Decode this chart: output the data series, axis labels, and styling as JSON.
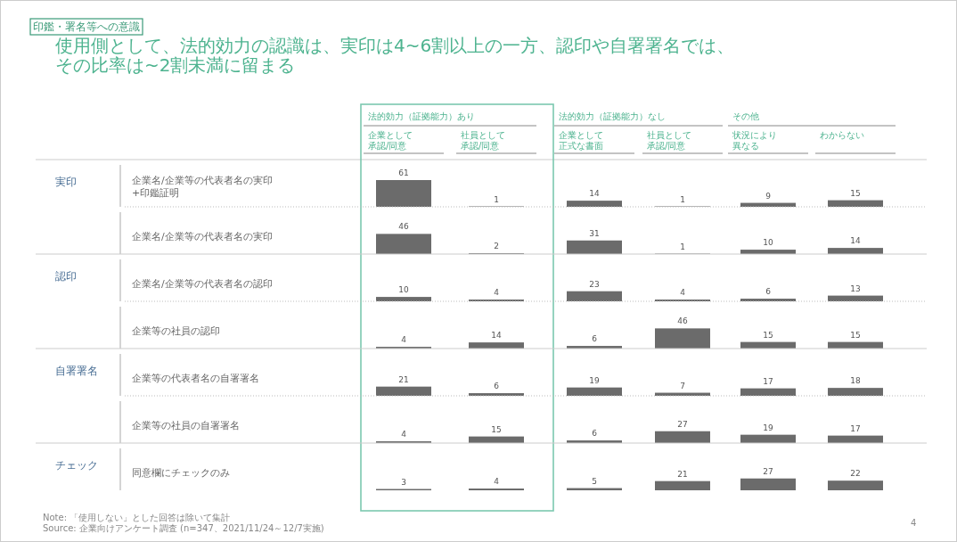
{
  "chart_data": [
    {
      "type": "other",
      "subtitle": "印鑑・署名等への意識",
      "title": "使用側として、法的効力の認識は、実印は4~6割以上の一方、認印や自署署名では、その比率は~2割未満に留まる"
    },
    {
      "type": "bar",
      "ylabel": "企業名/企業等の代表者名の実印+印鑑証明",
      "annotations": [
        "法的効力（証拠能力）あり",
        "法的効力（証拠能力）なし",
        "その他",
        "実印"
      ],
      "categories": [
        "企業として承認/同意",
        "社員として承認/同意",
        "企業として正式な書面",
        "社員として承認/同意",
        "状況により異なる",
        "わからない"
      ],
      "values": [
        61,
        1,
        14,
        1,
        9,
        15
      ],
      "color": "#6b6b6b",
      "data_labels": true
    },
    {
      "type": "bar",
      "ylabel": "企業名/企業等の代表者名の実印",
      "categories": [
        null,
        null,
        null,
        null,
        null,
        null
      ],
      "values": [
        46,
        2,
        31,
        1,
        10,
        14
      ],
      "color": "#6b6b6b",
      "data_labels": true
    },
    {
      "type": "bar",
      "ylabel": "企業名/企業等の代表者名の認印",
      "annotations": [
        "認印"
      ],
      "categories": [
        null,
        null,
        null,
        null,
        null,
        null
      ],
      "values": [
        10,
        4,
        23,
        4,
        6,
        13
      ],
      "color": "#6b6b6b",
      "data_labels": true
    },
    {
      "type": "bar",
      "ylabel": "企業等の社員の認印",
      "categories": [
        null,
        null,
        null,
        null,
        null,
        null
      ],
      "values": [
        4,
        14,
        6,
        46,
        15,
        15
      ],
      "color": "#6b6b6b",
      "data_labels": true
    },
    {
      "type": "bar",
      "ylabel": "企業等の代表者名の自署署名",
      "annotations": [
        "自署署名"
      ],
      "categories": [
        null,
        null,
        null,
        null,
        null,
        null
      ],
      "values": [
        21,
        6,
        19,
        7,
        17,
        18
      ],
      "color": "#6b6b6b",
      "data_labels": true
    },
    {
      "type": "bar",
      "ylabel": "企業等の社員の自署署名",
      "categories": [
        null,
        null,
        null,
        null,
        null,
        null
      ],
      "values": [
        4,
        15,
        6,
        27,
        19,
        17
      ],
      "color": "#6b6b6b",
      "data_labels": true
    },
    {
      "type": "bar",
      "ylabel": "同意欄にチェックのみ",
      "annotations": [
        "チェック"
      ],
      "categories": [
        null,
        null,
        null,
        null,
        null,
        null
      ],
      "values": [
        3,
        4,
        5,
        21,
        27,
        22
      ],
      "color": "#6b6b6b",
      "data_labels": true
    },
    {
      "type": "other",
      "annotations": [
        "Note: 「使用しない」とした回答は除いて集計",
        "Source: 企業向けアンケート調査 (n=347、2021/11/24～12/7実施)",
        "4"
      ]
    }
  ]
}
